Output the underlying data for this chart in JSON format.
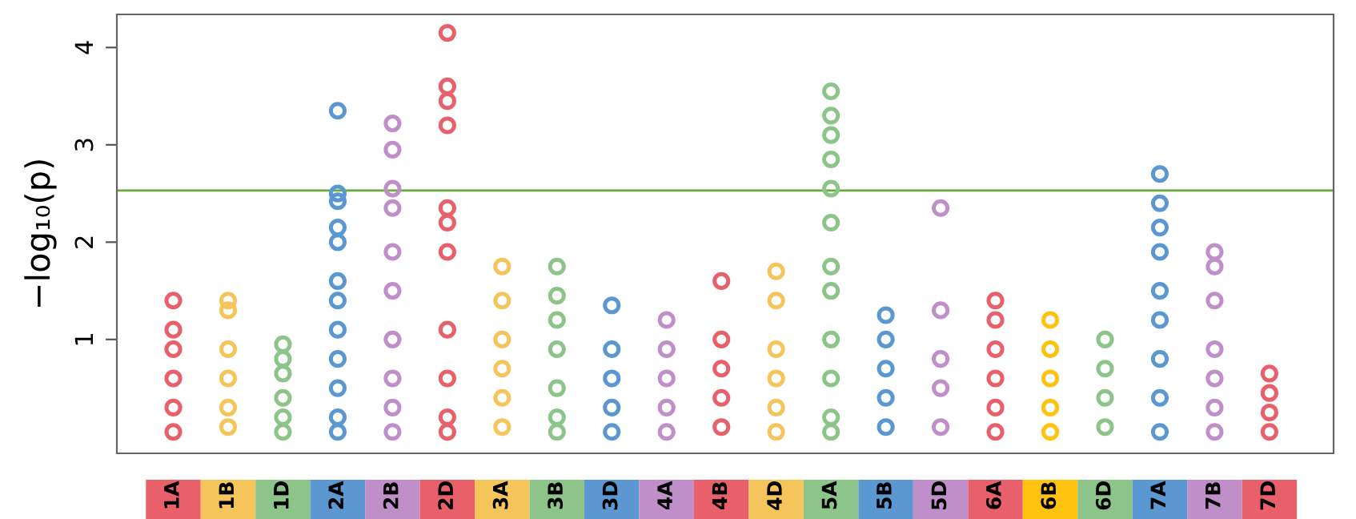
{
  "chart_data": {
    "type": "scatter",
    "ylabel": "−log₁₀(p)",
    "categories": [
      "1A",
      "1B",
      "1D",
      "2A",
      "2B",
      "2D",
      "3A",
      "3B",
      "3D",
      "4A",
      "4B",
      "4D",
      "5A",
      "5B",
      "5D",
      "6A",
      "6B",
      "6D",
      "7A",
      "7B",
      "7D"
    ],
    "series": [
      {
        "color": "#e8606a",
        "x": [
          "1A",
          "1A",
          "1A",
          "1A",
          "1A",
          "1A"
        ],
        "values": [
          1.4,
          1.1,
          0.9,
          0.6,
          0.3,
          0.05
        ]
      },
      {
        "color": "#f5c55b",
        "x": [
          "1B",
          "1B",
          "1B",
          "1B",
          "1B",
          "1B"
        ],
        "values": [
          1.4,
          1.3,
          0.9,
          0.6,
          0.3,
          0.1
        ]
      },
      {
        "color": "#8dc48a",
        "x": [
          "1D",
          "1D",
          "1D",
          "1D",
          "1D",
          "1D"
        ],
        "values": [
          0.95,
          0.8,
          0.65,
          0.4,
          0.2,
          0.05
        ]
      },
      {
        "color": "#5b97d0",
        "x": [
          "2A",
          "2A",
          "2A",
          "2A",
          "2A",
          "2A",
          "2A",
          "2A",
          "2A",
          "2A",
          "2A",
          "2A"
        ],
        "values": [
          3.35,
          2.5,
          2.42,
          2.15,
          2.0,
          1.6,
          1.4,
          1.1,
          0.8,
          0.5,
          0.2,
          0.05
        ]
      },
      {
        "color": "#c08fca",
        "x": [
          "2B",
          "2B",
          "2B",
          "2B",
          "2B",
          "2B",
          "2B",
          "2B",
          "2B",
          "2B"
        ],
        "values": [
          3.22,
          2.95,
          2.55,
          2.35,
          1.9,
          1.5,
          1.0,
          0.6,
          0.3,
          0.05
        ]
      },
      {
        "color": "#e8606a",
        "x": [
          "2D",
          "2D",
          "2D",
          "2D",
          "2D",
          "2D",
          "2D",
          "2D",
          "2D",
          "2D",
          "2D"
        ],
        "values": [
          4.15,
          3.6,
          3.45,
          3.2,
          2.35,
          2.2,
          1.9,
          1.1,
          0.6,
          0.2,
          0.05
        ]
      },
      {
        "color": "#f5c55b",
        "x": [
          "3A",
          "3A",
          "3A",
          "3A",
          "3A",
          "3A"
        ],
        "values": [
          1.75,
          1.4,
          1.0,
          0.7,
          0.4,
          0.1
        ]
      },
      {
        "color": "#8dc48a",
        "x": [
          "3B",
          "3B",
          "3B",
          "3B",
          "3B",
          "3B",
          "3B"
        ],
        "values": [
          1.75,
          1.45,
          1.2,
          0.9,
          0.5,
          0.2,
          0.05
        ]
      },
      {
        "color": "#5b97d0",
        "x": [
          "3D",
          "3D",
          "3D",
          "3D",
          "3D"
        ],
        "values": [
          1.35,
          0.9,
          0.6,
          0.3,
          0.05
        ]
      },
      {
        "color": "#c08fca",
        "x": [
          "4A",
          "4A",
          "4A",
          "4A",
          "4A"
        ],
        "values": [
          1.2,
          0.9,
          0.6,
          0.3,
          0.05
        ]
      },
      {
        "color": "#e8606a",
        "x": [
          "4B",
          "4B",
          "4B",
          "4B",
          "4B"
        ],
        "values": [
          1.6,
          1.0,
          0.7,
          0.4,
          0.1
        ]
      },
      {
        "color": "#f5c55b",
        "x": [
          "4D",
          "4D",
          "4D",
          "4D",
          "4D",
          "4D"
        ],
        "values": [
          1.7,
          1.4,
          0.9,
          0.6,
          0.3,
          0.05
        ]
      },
      {
        "color": "#8dc48a",
        "x": [
          "5A",
          "5A",
          "5A",
          "5A",
          "5A",
          "5A",
          "5A",
          "5A",
          "5A",
          "5A",
          "5A",
          "5A"
        ],
        "values": [
          3.55,
          3.3,
          3.1,
          2.85,
          2.55,
          2.2,
          1.75,
          1.5,
          1.0,
          0.6,
          0.2,
          0.05
        ]
      },
      {
        "color": "#5b97d0",
        "x": [
          "5B",
          "5B",
          "5B",
          "5B",
          "5B"
        ],
        "values": [
          1.25,
          1.0,
          0.7,
          0.4,
          0.1
        ]
      },
      {
        "color": "#c08fca",
        "x": [
          "5D",
          "5D",
          "5D",
          "5D",
          "5D"
        ],
        "values": [
          2.35,
          1.3,
          0.8,
          0.5,
          0.1
        ]
      },
      {
        "color": "#e8606a",
        "x": [
          "6A",
          "6A",
          "6A",
          "6A",
          "6A",
          "6A"
        ],
        "values": [
          1.4,
          1.2,
          0.9,
          0.6,
          0.3,
          0.05
        ]
      },
      {
        "color": "#ffc20e",
        "x": [
          "6B",
          "6B",
          "6B",
          "6B",
          "6B"
        ],
        "values": [
          1.2,
          0.9,
          0.6,
          0.3,
          0.05
        ]
      },
      {
        "color": "#8dc48a",
        "x": [
          "6D",
          "6D",
          "6D",
          "6D"
        ],
        "values": [
          1.0,
          0.7,
          0.4,
          0.1
        ]
      },
      {
        "color": "#5b97d0",
        "x": [
          "7A",
          "7A",
          "7A",
          "7A",
          "7A",
          "7A",
          "7A",
          "7A",
          "7A"
        ],
        "values": [
          2.7,
          2.4,
          2.15,
          1.9,
          1.5,
          1.2,
          0.8,
          0.4,
          0.05
        ]
      },
      {
        "color": "#c08fca",
        "x": [
          "7B",
          "7B",
          "7B",
          "7B",
          "7B",
          "7B",
          "7B"
        ],
        "values": [
          1.9,
          1.75,
          1.4,
          0.9,
          0.6,
          0.3,
          0.05
        ]
      },
      {
        "color": "#e8606a",
        "x": [
          "7D",
          "7D",
          "7D",
          "7D"
        ],
        "values": [
          0.65,
          0.45,
          0.25,
          0.05
        ]
      }
    ],
    "ylim": [
      -0.17,
      4.34
    ],
    "yticks": [
      1,
      2,
      3,
      4
    ],
    "ref_lines": [
      {
        "axis": "y",
        "value": 2.53,
        "color": "#6aaa3a"
      }
    ],
    "marker": "circle",
    "grid": false,
    "legend": false
  }
}
